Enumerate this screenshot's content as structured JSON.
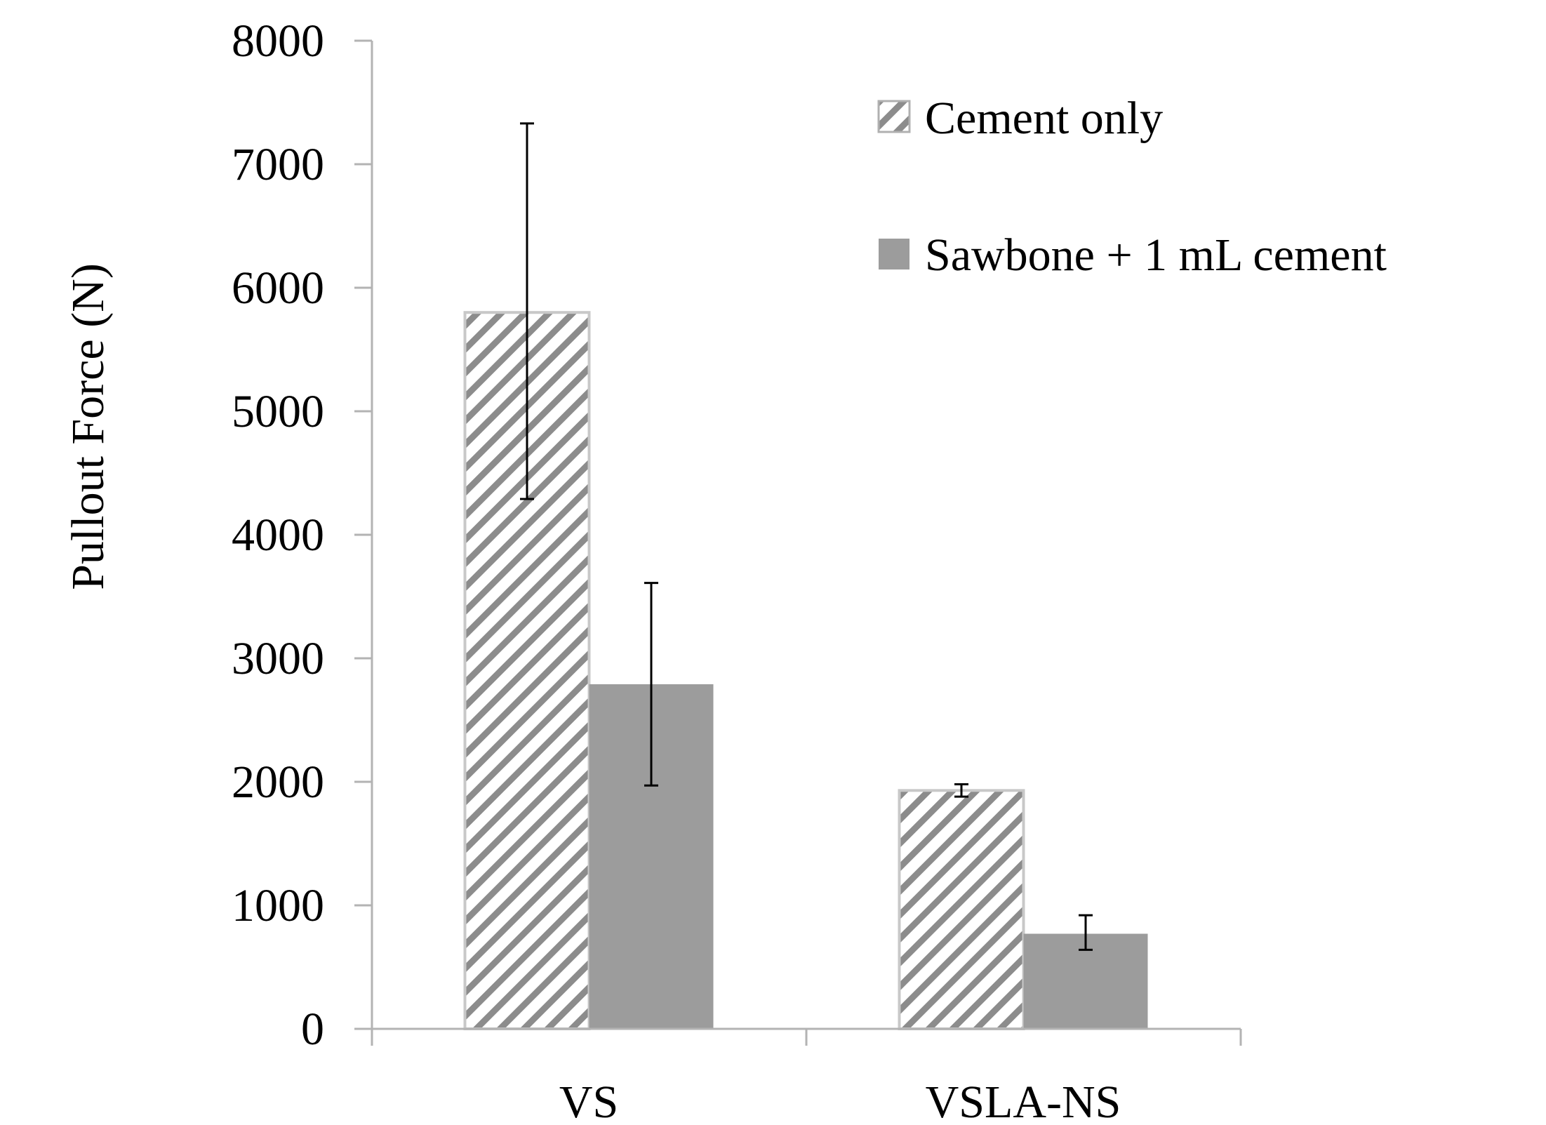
{
  "chart_data": {
    "type": "bar",
    "title": "",
    "xlabel": "",
    "ylabel": "Pullout Force (N)",
    "ylim": [
      0,
      8000
    ],
    "yticks": [
      0,
      1000,
      2000,
      3000,
      4000,
      5000,
      6000,
      7000,
      8000
    ],
    "grid": false,
    "legend_position": "top-right",
    "categories": [
      "VS",
      "VSLA-NS"
    ],
    "series": [
      {
        "name": "Cement only",
        "values": [
          5800,
          1930
        ],
        "error_low": [
          4290,
          1880
        ],
        "error_high": [
          7330,
          1980
        ],
        "fill": "hatched",
        "color": "#8c8c8c"
      },
      {
        "name": "Sawbone + 1 mL cement",
        "values": [
          2790,
          770
        ],
        "error_low": [
          1970,
          640
        ],
        "error_high": [
          3610,
          920
        ],
        "fill": "solid",
        "color": "#9c9c9c"
      }
    ]
  },
  "colors": {
    "axis": "#b3b3b3",
    "text": "#000000",
    "error_bar": "#000000",
    "bar_border": "#c8c8c8"
  }
}
